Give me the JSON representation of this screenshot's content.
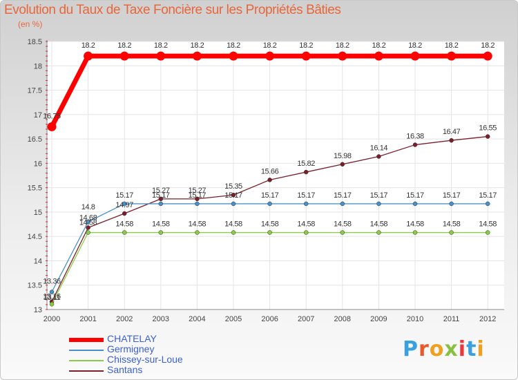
{
  "chart_data": {
    "type": "line",
    "title": "Evolution du Taux de Taxe Foncière sur les Propriétés Bâties",
    "unit_label": "(en %)",
    "x": [
      "2000",
      "2001",
      "2002",
      "2003",
      "2004",
      "2005",
      "2006",
      "2007",
      "2008",
      "2009",
      "2010",
      "2011",
      "2012"
    ],
    "ylim": [
      13,
      18.5
    ],
    "yticks": [
      "13",
      "13.5",
      "14",
      "14.5",
      "15",
      "15.5",
      "16",
      "16.5",
      "17",
      "17.5",
      "18",
      "18.5"
    ],
    "series": [
      {
        "name": "CHATELAY",
        "color": "#ff0000",
        "values": [
          16.75,
          18.2,
          18.2,
          18.2,
          18.2,
          18.2,
          18.2,
          18.2,
          18.2,
          18.2,
          18.2,
          18.2,
          18.2
        ],
        "labels": [
          "16.75",
          "18.2",
          "18.2",
          "18.2",
          "18.2",
          "18.2",
          "18.2",
          "18.2",
          "18.2",
          "18.2",
          "18.2",
          "18.2",
          "18.2"
        ]
      },
      {
        "name": "Germigney",
        "color": "#4a90c8",
        "values": [
          13.36,
          14.8,
          15.17,
          15.17,
          15.17,
          15.17,
          15.17,
          15.17,
          15.17,
          15.17,
          15.17,
          15.17,
          15.17
        ],
        "labels": [
          "13.36",
          "14.8",
          "15.17",
          "15.17",
          "15.17",
          "15.17",
          "15.17",
          "15.17",
          "15.17",
          "15.17",
          "15.17",
          "15.17",
          "15.17"
        ]
      },
      {
        "name": "Chissey-sur-Loue",
        "color": "#88cc44",
        "values": [
          13.11,
          14.58,
          14.58,
          14.58,
          14.58,
          14.58,
          14.58,
          14.58,
          14.58,
          14.58,
          14.58,
          14.58,
          14.58
        ],
        "labels": [
          "13.11",
          "14.58",
          "14.58",
          "14.58",
          "14.58",
          "14.58",
          "14.58",
          "14.58",
          "14.58",
          "14.58",
          "14.58",
          "14.58",
          "14.58"
        ]
      },
      {
        "name": "Santans",
        "color": "#7a1e2a",
        "values": [
          13.16,
          14.68,
          14.97,
          15.27,
          15.27,
          15.35,
          15.66,
          15.82,
          15.98,
          16.14,
          16.38,
          16.47,
          16.55
        ],
        "labels": [
          "13.16",
          "14.68",
          "14.97",
          "15.27",
          "15.27",
          "15.35",
          "15.66",
          "15.82",
          "15.98",
          "16.14",
          "16.38",
          "16.47",
          "16.55"
        ]
      }
    ]
  },
  "legend": [
    {
      "label": "CHATELAY"
    },
    {
      "label": "Germigney"
    },
    {
      "label": "Chissey-sur-Loue"
    },
    {
      "label": "Santans"
    }
  ],
  "logo": {
    "letters": [
      "P",
      "r",
      "o",
      "x",
      "i",
      "t",
      "i"
    ],
    "colors": [
      "#3aa0e0",
      "#e85a2a",
      "#f0a020",
      "#88c040",
      "#e83a3a",
      "#3aa0e0",
      "#f0a020"
    ]
  }
}
